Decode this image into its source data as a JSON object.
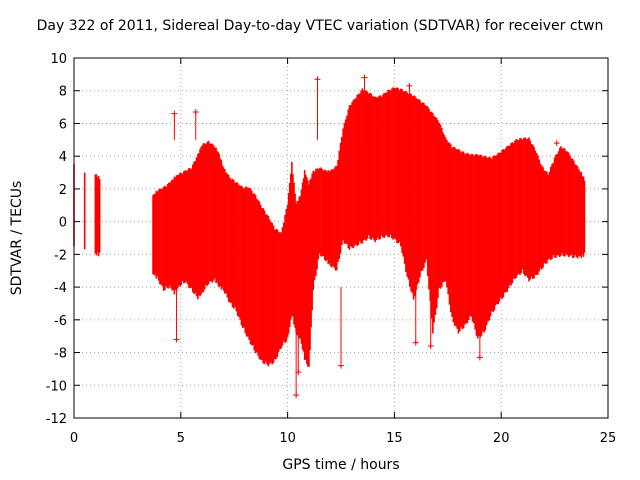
{
  "chart_data": {
    "type": "scatter",
    "title": "Day 322 of 2011, Sidereal Day-to-day VTEC variation (SDTVAR) for receiver ctwn",
    "xlabel": "GPS time / hours",
    "ylabel": "SDTVAR / TECUs",
    "xlim": [
      0,
      25
    ],
    "ylim": [
      -12,
      10
    ],
    "xticks": [
      0,
      5,
      10,
      15,
      20,
      25
    ],
    "yticks": [
      -12,
      -10,
      -8,
      -6,
      -4,
      -2,
      0,
      2,
      4,
      6,
      8,
      10
    ],
    "grid": true,
    "marker": "+",
    "color": "#ff0000",
    "series": [
      {
        "name": "SDTVAR",
        "envelope": [
          [
            0.0,
            -1.5,
            3.5
          ],
          [
            0.5,
            -1.7,
            3.0
          ],
          [
            1.0,
            -1.8,
            2.8
          ],
          [
            1.2,
            -1.9,
            2.6
          ],
          [
            3.7,
            -3.0,
            1.5
          ],
          [
            3.9,
            -3.3,
            1.8
          ],
          [
            4.2,
            -4.0,
            2.0
          ],
          [
            4.5,
            -3.8,
            2.3
          ],
          [
            4.7,
            -4.2,
            2.6
          ],
          [
            4.9,
            -3.8,
            2.8
          ],
          [
            5.2,
            -3.5,
            3.0
          ],
          [
            5.5,
            -4.0,
            3.2
          ],
          [
            5.8,
            -4.5,
            4.0
          ],
          [
            6.0,
            -4.2,
            4.6
          ],
          [
            6.3,
            -3.6,
            4.8
          ],
          [
            6.6,
            -3.4,
            4.5
          ],
          [
            6.8,
            -3.8,
            4.0
          ],
          [
            7.0,
            -4.0,
            3.2
          ],
          [
            7.3,
            -4.8,
            2.6
          ],
          [
            7.6,
            -5.3,
            2.3
          ],
          [
            7.9,
            -6.3,
            2.0
          ],
          [
            8.2,
            -7.1,
            2.0
          ],
          [
            8.5,
            -7.8,
            1.5
          ],
          [
            8.8,
            -8.4,
            0.8
          ],
          [
            9.1,
            -8.6,
            0.2
          ],
          [
            9.4,
            -8.4,
            -0.5
          ],
          [
            9.7,
            -7.5,
            -0.8
          ],
          [
            10.0,
            -7.0,
            1.0
          ],
          [
            10.2,
            -5.5,
            3.5
          ],
          [
            10.4,
            -6.6,
            1.0
          ],
          [
            10.6,
            -7.0,
            1.5
          ],
          [
            10.8,
            -8.2,
            3.0
          ],
          [
            11.0,
            -8.8,
            2.2
          ],
          [
            11.2,
            -4.0,
            3.0
          ],
          [
            11.5,
            -1.8,
            3.2
          ],
          [
            11.8,
            -2.2,
            3.0
          ],
          [
            12.0,
            -2.5,
            3.0
          ],
          [
            12.3,
            -2.8,
            3.3
          ],
          [
            12.6,
            -1.0,
            5.6
          ],
          [
            12.9,
            -1.5,
            7.0
          ],
          [
            13.2,
            -1.3,
            7.5
          ],
          [
            13.5,
            -1.1,
            8.0
          ],
          [
            13.8,
            -0.8,
            7.8
          ],
          [
            14.1,
            -1.0,
            7.5
          ],
          [
            14.4,
            -0.8,
            7.6
          ],
          [
            14.7,
            -0.7,
            7.9
          ],
          [
            15.0,
            -0.9,
            8.1
          ],
          [
            15.3,
            -1.3,
            8.0
          ],
          [
            15.6,
            -3.2,
            7.8
          ],
          [
            15.9,
            -4.6,
            7.6
          ],
          [
            16.2,
            -3.2,
            7.3
          ],
          [
            16.5,
            -2.2,
            7.0
          ],
          [
            16.8,
            -6.6,
            6.5
          ],
          [
            17.1,
            -4.0,
            6.0
          ],
          [
            17.4,
            -3.4,
            5.0
          ],
          [
            17.7,
            -5.8,
            4.5
          ],
          [
            18.0,
            -6.6,
            4.3
          ],
          [
            18.3,
            -6.2,
            4.1
          ],
          [
            18.6,
            -5.6,
            4.0
          ],
          [
            18.9,
            -7.0,
            4.0
          ],
          [
            19.2,
            -6.6,
            3.9
          ],
          [
            19.5,
            -5.6,
            3.8
          ],
          [
            19.8,
            -4.9,
            4.0
          ],
          [
            20.1,
            -4.4,
            4.3
          ],
          [
            20.4,
            -3.8,
            4.6
          ],
          [
            20.7,
            -3.2,
            4.9
          ],
          [
            21.0,
            -2.9,
            5.0
          ],
          [
            21.3,
            -3.4,
            5.0
          ],
          [
            21.6,
            -3.2,
            4.3
          ],
          [
            21.9,
            -2.7,
            3.3
          ],
          [
            22.2,
            -2.2,
            2.8
          ],
          [
            22.5,
            -2.0,
            3.8
          ],
          [
            22.8,
            -1.9,
            4.5
          ],
          [
            23.1,
            -1.9,
            4.2
          ],
          [
            23.4,
            -2.0,
            3.6
          ],
          [
            23.7,
            -2.0,
            3.0
          ],
          [
            23.9,
            -1.9,
            2.5
          ]
        ],
        "outliers": [
          [
            4.7,
            6.6
          ],
          [
            4.8,
            -7.2
          ],
          [
            5.7,
            6.7
          ],
          [
            10.4,
            -10.6
          ],
          [
            10.5,
            -9.2
          ],
          [
            11.4,
            8.7
          ],
          [
            12.5,
            -8.8
          ],
          [
            13.6,
            8.8
          ],
          [
            15.7,
            8.3
          ],
          [
            16.0,
            -7.4
          ],
          [
            16.7,
            -7.6
          ],
          [
            19.0,
            -8.3
          ],
          [
            22.6,
            4.8
          ]
        ]
      }
    ]
  }
}
